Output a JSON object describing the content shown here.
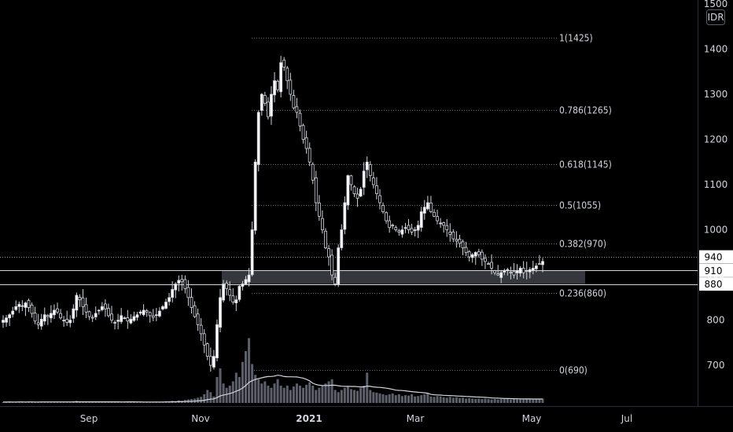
{
  "chart_data": {
    "type": "candlestick",
    "currency": "IDR",
    "ylim": [
      615,
      1500
    ],
    "y_ticks": [
      700,
      800,
      900,
      1000,
      1100,
      1200,
      1300,
      1400,
      1500
    ],
    "x_ticks": [
      {
        "label": "Sep",
        "bold": false
      },
      {
        "label": "Nov",
        "bold": false
      },
      {
        "label": "2021",
        "bold": true
      },
      {
        "label": "Mar",
        "bold": false
      },
      {
        "label": "May",
        "bold": false
      },
      {
        "label": "Jul",
        "bold": false
      }
    ],
    "fibonacci": [
      {
        "label": "1(1425)",
        "value": 1425
      },
      {
        "label": "0.786(1265)",
        "value": 1265
      },
      {
        "label": "0.618(1145)",
        "value": 1145
      },
      {
        "label": "0.5(1055)",
        "value": 1055
      },
      {
        "label": "0.382(970)",
        "value": 970
      },
      {
        "label": "0.236(860)",
        "value": 860
      },
      {
        "label": "0(690)",
        "value": 690
      }
    ],
    "support_zone": [
      880,
      910
    ],
    "price_labels": [
      {
        "label": "940",
        "value": 940
      },
      {
        "label": "910",
        "value": 910
      },
      {
        "label": "880",
        "value": 880
      }
    ],
    "closes": [
      800,
      805,
      812,
      820,
      830,
      835,
      832,
      838,
      828,
      815,
      798,
      790,
      802,
      812,
      808,
      815,
      822,
      818,
      805,
      800,
      795,
      800,
      825,
      855,
      845,
      830,
      818,
      808,
      805,
      815,
      822,
      830,
      825,
      810,
      800,
      795,
      800,
      810,
      805,
      798,
      802,
      808,
      812,
      818,
      822,
      818,
      810,
      806,
      812,
      820,
      830,
      840,
      850,
      868,
      880,
      888,
      885,
      870,
      850,
      828,
      808,
      790,
      770,
      745,
      720,
      700,
      720,
      790,
      850,
      880,
      870,
      855,
      840,
      845,
      875,
      880,
      890,
      900,
      1000,
      1150,
      1260,
      1300,
      1280,
      1250,
      1300,
      1330,
      1310,
      1370,
      1360,
      1330,
      1300,
      1270,
      1260,
      1230,
      1200,
      1180,
      1150,
      1110,
      1060,
      1030,
      1000,
      960,
      940,
      900,
      880,
      960,
      1000,
      1060,
      1120,
      1100,
      1080,
      1070,
      1090,
      1130,
      1150,
      1120,
      1100,
      1080,
      1060,
      1040,
      1020,
      1005,
      1010,
      1000,
      995,
      1000,
      1005,
      1000,
      995,
      1000,
      1010,
      1040,
      1050,
      1060,
      1040,
      1030,
      1020,
      1015,
      1010,
      1000,
      990,
      980,
      975,
      970,
      960,
      950,
      940,
      945,
      950,
      945,
      935,
      930,
      925,
      915,
      905,
      900,
      905,
      910,
      912,
      905,
      900,
      910,
      915,
      905,
      910,
      912,
      915,
      920,
      925,
      930
    ],
    "close_series_note_removed": true,
    "volumes": [
      2,
      2,
      3,
      2,
      2,
      3,
      2,
      2,
      3,
      2,
      2,
      2,
      3,
      2,
      3,
      2,
      2,
      3,
      2,
      2,
      2,
      2,
      4,
      5,
      3,
      2,
      2,
      3,
      2,
      2,
      3,
      2,
      2,
      2,
      3,
      2,
      2,
      2,
      2,
      3,
      2,
      2,
      2,
      3,
      2,
      2,
      2,
      2,
      3,
      2,
      3,
      4,
      4,
      5,
      4,
      6,
      5,
      7,
      8,
      9,
      10,
      12,
      14,
      20,
      30,
      25,
      15,
      60,
      80,
      45,
      35,
      40,
      50,
      70,
      60,
      95,
      120,
      150,
      90,
      65,
      55,
      45,
      50,
      40,
      35,
      45,
      55,
      40,
      35,
      40,
      30,
      38,
      45,
      40,
      35,
      42,
      48,
      40,
      30,
      35,
      40,
      45,
      50,
      55,
      30,
      25,
      30,
      35,
      38,
      32,
      30,
      28,
      35,
      40,
      70,
      30,
      25,
      24,
      22,
      20,
      18,
      20,
      22,
      18,
      20,
      16,
      18,
      17,
      20,
      15,
      16,
      18,
      20,
      22,
      15,
      14,
      16,
      15,
      13,
      12,
      14,
      12,
      13,
      11,
      12,
      10,
      11,
      10,
      9,
      10,
      9,
      10,
      9,
      8,
      9,
      8,
      9,
      10,
      9,
      8,
      9,
      9,
      10,
      8,
      9,
      10,
      8,
      10,
      9,
      10
    ]
  }
}
